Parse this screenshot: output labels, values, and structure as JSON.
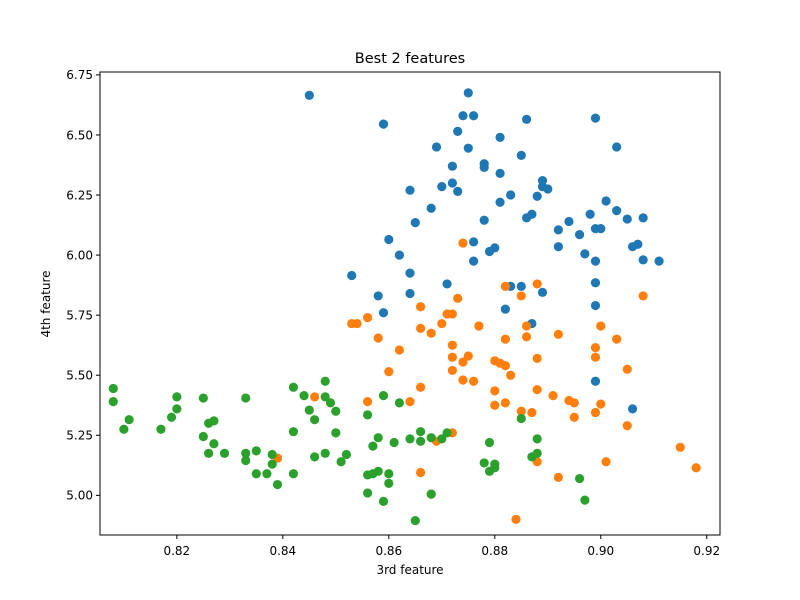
{
  "chart_data": {
    "type": "scatter",
    "title": "Best 2 features",
    "xlabel": "3rd feature",
    "ylabel": "4th feature",
    "xlim": [
      0.8055,
      0.9225
    ],
    "ylim": [
      4.835,
      6.762
    ],
    "xticks": [
      "0.82",
      "0.84",
      "0.86",
      "0.88",
      "0.90",
      "0.92"
    ],
    "yticks": [
      "5.00",
      "5.25",
      "5.50",
      "5.75",
      "6.00",
      "6.25",
      "6.50",
      "6.75"
    ],
    "grid": false,
    "legend": "none",
    "series": [
      {
        "color": "#1f77b4",
        "points": [
          [
            0.845,
            6.665
          ],
          [
            0.875,
            6.675
          ],
          [
            0.874,
            6.58
          ],
          [
            0.876,
            6.58
          ],
          [
            0.859,
            6.545
          ],
          [
            0.886,
            6.565
          ],
          [
            0.899,
            6.57
          ],
          [
            0.873,
            6.515
          ],
          [
            0.881,
            6.49
          ],
          [
            0.875,
            6.445
          ],
          [
            0.869,
            6.45
          ],
          [
            0.903,
            6.45
          ],
          [
            0.885,
            6.415
          ],
          [
            0.872,
            6.37
          ],
          [
            0.878,
            6.38
          ],
          [
            0.878,
            6.365
          ],
          [
            0.881,
            6.34
          ],
          [
            0.872,
            6.3
          ],
          [
            0.87,
            6.285
          ],
          [
            0.864,
            6.27
          ],
          [
            0.873,
            6.265
          ],
          [
            0.883,
            6.25
          ],
          [
            0.889,
            6.31
          ],
          [
            0.889,
            6.285
          ],
          [
            0.89,
            6.275
          ],
          [
            0.888,
            6.245
          ],
          [
            0.881,
            6.22
          ],
          [
            0.868,
            6.195
          ],
          [
            0.901,
            6.225
          ],
          [
            0.903,
            6.185
          ],
          [
            0.887,
            6.17
          ],
          [
            0.886,
            6.155
          ],
          [
            0.894,
            6.14
          ],
          [
            0.898,
            6.17
          ],
          [
            0.905,
            6.15
          ],
          [
            0.908,
            6.155
          ],
          [
            0.878,
            6.145
          ],
          [
            0.865,
            6.135
          ],
          [
            0.899,
            6.11
          ],
          [
            0.9,
            6.11
          ],
          [
            0.892,
            6.105
          ],
          [
            0.896,
            6.085
          ],
          [
            0.86,
            6.065
          ],
          [
            0.876,
            6.055
          ],
          [
            0.88,
            6.03
          ],
          [
            0.879,
            6.015
          ],
          [
            0.892,
            6.035
          ],
          [
            0.906,
            6.035
          ],
          [
            0.907,
            6.045
          ],
          [
            0.862,
            6.0
          ],
          [
            0.897,
            6.005
          ],
          [
            0.876,
            5.975
          ],
          [
            0.899,
            5.975
          ],
          [
            0.908,
            5.98
          ],
          [
            0.911,
            5.975
          ],
          [
            0.864,
            5.925
          ],
          [
            0.853,
            5.915
          ],
          [
            0.871,
            5.88
          ],
          [
            0.883,
            5.87
          ],
          [
            0.885,
            5.87
          ],
          [
            0.899,
            5.885
          ],
          [
            0.864,
            5.84
          ],
          [
            0.858,
            5.83
          ],
          [
            0.889,
            5.845
          ],
          [
            0.899,
            5.79
          ],
          [
            0.882,
            5.775
          ],
          [
            0.859,
            5.76
          ],
          [
            0.887,
            5.715
          ],
          [
            0.899,
            5.475
          ],
          [
            0.906,
            5.36
          ]
        ]
      },
      {
        "color": "#ff7f0e",
        "points": [
          [
            0.874,
            6.05
          ],
          [
            0.888,
            5.88
          ],
          [
            0.882,
            5.87
          ],
          [
            0.908,
            5.83
          ],
          [
            0.885,
            5.83
          ],
          [
            0.873,
            5.82
          ],
          [
            0.866,
            5.785
          ],
          [
            0.871,
            5.755
          ],
          [
            0.872,
            5.755
          ],
          [
            0.856,
            5.74
          ],
          [
            0.853,
            5.715
          ],
          [
            0.854,
            5.715
          ],
          [
            0.87,
            5.715
          ],
          [
            0.877,
            5.705
          ],
          [
            0.886,
            5.705
          ],
          [
            0.9,
            5.705
          ],
          [
            0.866,
            5.695
          ],
          [
            0.868,
            5.675
          ],
          [
            0.892,
            5.67
          ],
          [
            0.858,
            5.655
          ],
          [
            0.882,
            5.65
          ],
          [
            0.886,
            5.66
          ],
          [
            0.903,
            5.65
          ],
          [
            0.872,
            5.625
          ],
          [
            0.862,
            5.605
          ],
          [
            0.899,
            5.615
          ],
          [
            0.872,
            5.575
          ],
          [
            0.875,
            5.58
          ],
          [
            0.874,
            5.555
          ],
          [
            0.88,
            5.56
          ],
          [
            0.881,
            5.55
          ],
          [
            0.882,
            5.54
          ],
          [
            0.888,
            5.57
          ],
          [
            0.899,
            5.575
          ],
          [
            0.905,
            5.525
          ],
          [
            0.872,
            5.52
          ],
          [
            0.86,
            5.515
          ],
          [
            0.883,
            5.5
          ],
          [
            0.874,
            5.48
          ],
          [
            0.876,
            5.475
          ],
          [
            0.866,
            5.45
          ],
          [
            0.88,
            5.435
          ],
          [
            0.888,
            5.44
          ],
          [
            0.891,
            5.415
          ],
          [
            0.846,
            5.41
          ],
          [
            0.856,
            5.39
          ],
          [
            0.864,
            5.39
          ],
          [
            0.88,
            5.375
          ],
          [
            0.882,
            5.385
          ],
          [
            0.894,
            5.395
          ],
          [
            0.895,
            5.385
          ],
          [
            0.9,
            5.38
          ],
          [
            0.885,
            5.35
          ],
          [
            0.887,
            5.345
          ],
          [
            0.899,
            5.345
          ],
          [
            0.895,
            5.325
          ],
          [
            0.905,
            5.29
          ],
          [
            0.872,
            5.26
          ],
          [
            0.869,
            5.225
          ],
          [
            0.915,
            5.2
          ],
          [
            0.839,
            5.155
          ],
          [
            0.888,
            5.14
          ],
          [
            0.901,
            5.14
          ],
          [
            0.918,
            5.115
          ],
          [
            0.866,
            5.095
          ],
          [
            0.892,
            5.075
          ],
          [
            0.868,
            5.005
          ],
          [
            0.884,
            4.9
          ]
        ]
      },
      {
        "color": "#2ca02c",
        "points": [
          [
            0.848,
            5.475
          ],
          [
            0.842,
            5.45
          ],
          [
            0.808,
            5.445
          ],
          [
            0.859,
            5.415
          ],
          [
            0.82,
            5.41
          ],
          [
            0.825,
            5.405
          ],
          [
            0.833,
            5.405
          ],
          [
            0.844,
            5.415
          ],
          [
            0.848,
            5.41
          ],
          [
            0.808,
            5.39
          ],
          [
            0.849,
            5.385
          ],
          [
            0.862,
            5.385
          ],
          [
            0.82,
            5.36
          ],
          [
            0.845,
            5.355
          ],
          [
            0.85,
            5.35
          ],
          [
            0.856,
            5.335
          ],
          [
            0.819,
            5.325
          ],
          [
            0.885,
            5.32
          ],
          [
            0.811,
            5.315
          ],
          [
            0.846,
            5.315
          ],
          [
            0.827,
            5.31
          ],
          [
            0.826,
            5.3
          ],
          [
            0.81,
            5.275
          ],
          [
            0.817,
            5.275
          ],
          [
            0.842,
            5.265
          ],
          [
            0.85,
            5.26
          ],
          [
            0.866,
            5.265
          ],
          [
            0.871,
            5.26
          ],
          [
            0.825,
            5.245
          ],
          [
            0.858,
            5.24
          ],
          [
            0.864,
            5.235
          ],
          [
            0.868,
            5.24
          ],
          [
            0.87,
            5.235
          ],
          [
            0.888,
            5.235
          ],
          [
            0.827,
            5.215
          ],
          [
            0.861,
            5.22
          ],
          [
            0.866,
            5.225
          ],
          [
            0.879,
            5.22
          ],
          [
            0.857,
            5.205
          ],
          [
            0.835,
            5.185
          ],
          [
            0.833,
            5.175
          ],
          [
            0.826,
            5.175
          ],
          [
            0.829,
            5.175
          ],
          [
            0.838,
            5.17
          ],
          [
            0.848,
            5.175
          ],
          [
            0.852,
            5.17
          ],
          [
            0.846,
            5.16
          ],
          [
            0.887,
            5.16
          ],
          [
            0.888,
            5.175
          ],
          [
            0.833,
            5.145
          ],
          [
            0.838,
            5.13
          ],
          [
            0.851,
            5.14
          ],
          [
            0.878,
            5.135
          ],
          [
            0.88,
            5.13
          ],
          [
            0.88,
            5.115
          ],
          [
            0.879,
            5.1
          ],
          [
            0.835,
            5.09
          ],
          [
            0.837,
            5.09
          ],
          [
            0.842,
            5.09
          ],
          [
            0.857,
            5.09
          ],
          [
            0.856,
            5.085
          ],
          [
            0.858,
            5.1
          ],
          [
            0.86,
            5.09
          ],
          [
            0.896,
            5.07
          ],
          [
            0.86,
            5.05
          ],
          [
            0.839,
            5.045
          ],
          [
            0.856,
            5.01
          ],
          [
            0.868,
            5.005
          ],
          [
            0.859,
            4.975
          ],
          [
            0.897,
            4.98
          ],
          [
            0.865,
            4.895
          ]
        ]
      }
    ]
  }
}
